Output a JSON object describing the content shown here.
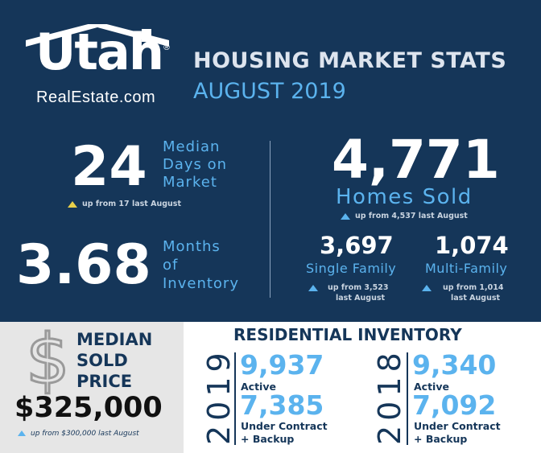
{
  "logo": {
    "brand": "Utah",
    "registered": "®",
    "sub": "RealEstate.com",
    "roof_icon": "house-roof-icon"
  },
  "header": {
    "title": "HOUSING MARKET STATS",
    "month": "AUGUST 2019"
  },
  "stats": {
    "days_on_market": {
      "value": "24",
      "line1": "Median",
      "line2": "Days on",
      "line3": "Market",
      "note": "up from 17 last August",
      "arrow_color": "#e7cf4a"
    },
    "months_inventory": {
      "value": "3.68",
      "line1": "Months",
      "line2": "of",
      "line3": "Inventory"
    },
    "homes_sold": {
      "value": "4,771",
      "label": "Homes Sold",
      "note": "up from 4,537 last August"
    },
    "single_family": {
      "value": "3,697",
      "label": "Single Family",
      "note1": "up from 3,523",
      "note2": "last August"
    },
    "multi_family": {
      "value": "1,074",
      "label": "Multi-Family",
      "note1": "up from 1,014",
      "note2": "last August"
    }
  },
  "price": {
    "icon": "dollar-sign-icon",
    "line1": "MEDIAN",
    "line2": "SOLD",
    "line3": "PRICE",
    "value": "$325,000",
    "note": "up from $300,000 last August"
  },
  "inventory": {
    "title": "RESIDENTIAL INVENTORY",
    "years": [
      {
        "year": "2019",
        "active": "9,937",
        "active_label": "Active",
        "contract": "7,385",
        "contract_label1": "Under Contract",
        "contract_label2": "+ Backup"
      },
      {
        "year": "2018",
        "active": "9,340",
        "active_label": "Active",
        "contract": "7,092",
        "contract_label1": "Under Contract",
        "contract_label2": "+ Backup"
      }
    ]
  },
  "colors": {
    "navy": "#153659",
    "accent_blue": "#5bb3ee",
    "arrow_yellow": "#e7cf4a",
    "panel_gray": "#e6e6e6"
  }
}
